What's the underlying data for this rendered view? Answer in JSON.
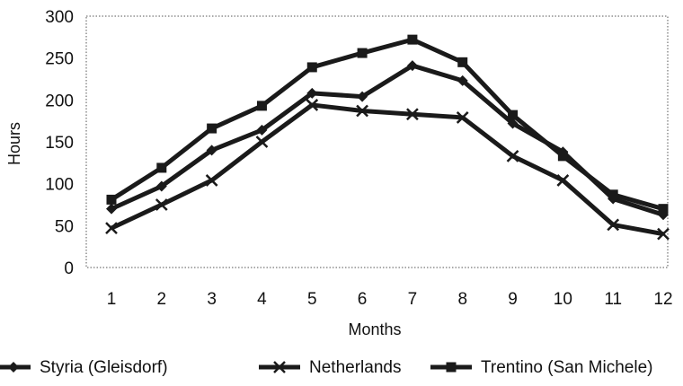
{
  "chart_data": {
    "type": "line",
    "title": "",
    "xlabel": "Months",
    "ylabel": "Hours",
    "categories": [
      "1",
      "2",
      "3",
      "4",
      "5",
      "6",
      "7",
      "8",
      "9",
      "10",
      "11",
      "12"
    ],
    "ylim": [
      0,
      300
    ],
    "yticks": [
      "0",
      "50",
      "100",
      "150",
      "200",
      "250",
      "300"
    ],
    "grid": false,
    "legend_position": "bottom",
    "series": [
      {
        "name": "Styria (Gleisdorf)",
        "marker": "diamond",
        "color": "#1a1a1a",
        "values": [
          70,
          97,
          140,
          164,
          208,
          204,
          241,
          223,
          172,
          138,
          82,
          63
        ]
      },
      {
        "name": "Netherlands",
        "marker": "x",
        "color": "#1a1a1a",
        "values": [
          47,
          75,
          104,
          150,
          194,
          187,
          183,
          179,
          133,
          104,
          51,
          40
        ]
      },
      {
        "name": "Trentino (San Michele)",
        "marker": "square",
        "color": "#1a1a1a",
        "values": [
          81,
          119,
          166,
          193,
          239,
          256,
          272,
          245,
          182,
          133,
          87,
          70
        ]
      }
    ]
  }
}
